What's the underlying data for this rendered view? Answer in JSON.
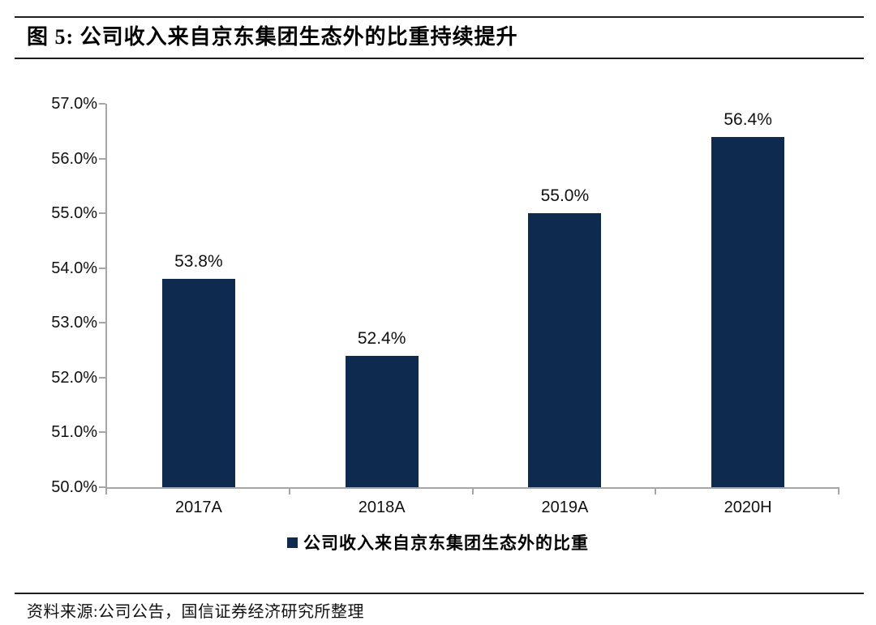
{
  "figure": {
    "title": "图 5: 公司收入来自京东集团生态外的比重持续提升",
    "source": "资料来源:公司公告，国信证券经济研究所整理"
  },
  "colors": {
    "bar": "#0e2a4e",
    "axis": "#a6a6a6",
    "rule": "#1f1f1f"
  },
  "chart_data": {
    "type": "bar",
    "title": "公司收入来自京东集团生态外的比重持续提升",
    "categories": [
      "2017A",
      "2018A",
      "2019A",
      "2020H"
    ],
    "values": [
      53.8,
      52.4,
      55.0,
      56.4
    ],
    "data_labels": [
      "53.8%",
      "52.4%",
      "55.0%",
      "56.4%"
    ],
    "series_name": "公司收入来自京东集团生态外的比重",
    "legend_position": "bottom",
    "xlabel": "",
    "ylabel": "",
    "ylim": [
      50.0,
      57.0
    ],
    "ytick_step": 1.0,
    "ytick_labels": [
      "50.0%",
      "51.0%",
      "52.0%",
      "53.0%",
      "54.0%",
      "55.0%",
      "56.0%",
      "57.0%"
    ],
    "grid": false,
    "bar_color": "#0e2a4e"
  }
}
